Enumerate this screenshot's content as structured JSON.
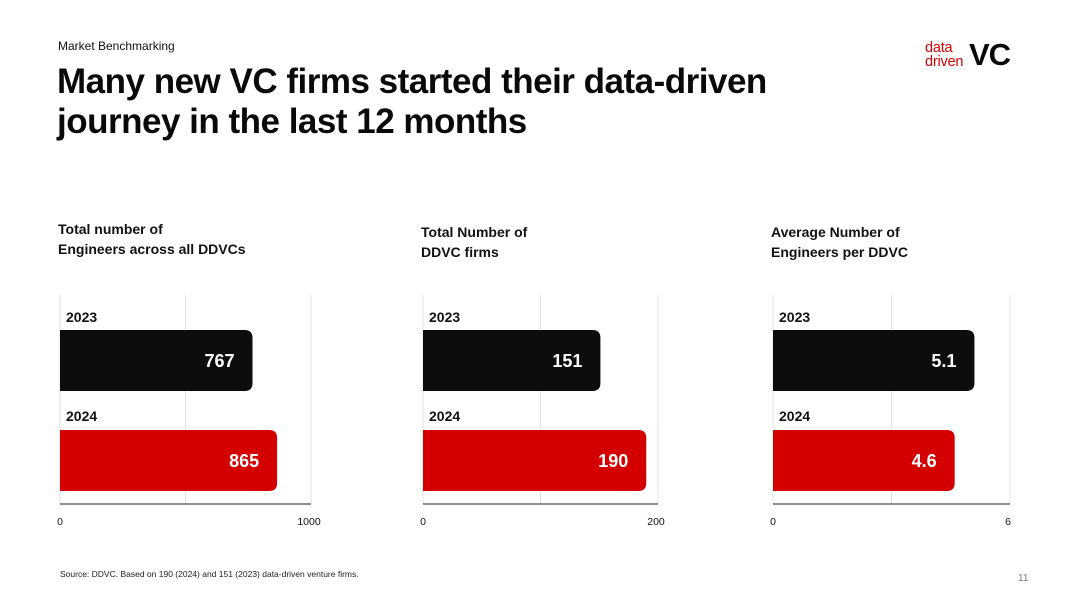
{
  "header": {
    "section": "Market Benchmarking",
    "title_line1": "Many new VC firms started their data-driven",
    "title_line2": "journey in the last 12 months"
  },
  "logo": {
    "line1": "data",
    "line2": "driven",
    "mark": "VC"
  },
  "colors": {
    "bar_2023": "#0d0d0d",
    "bar_2024": "#d40000",
    "grid": "#e2e2e2",
    "axis": "#222222"
  },
  "chart_data": [
    {
      "type": "bar",
      "orientation": "horizontal",
      "title_lines": [
        "Total number of",
        "Engineers across all DDVCs"
      ],
      "categories": [
        "2023",
        "2024"
      ],
      "values": [
        767,
        865
      ],
      "value_labels": [
        "767",
        "865"
      ],
      "xlim": [
        0,
        1000
      ],
      "tick_labels": [
        "0",
        "1000"
      ],
      "grid": true
    },
    {
      "type": "bar",
      "orientation": "horizontal",
      "title_lines": [
        "Total Number of",
        "DDVC firms"
      ],
      "categories": [
        "2023",
        "2024"
      ],
      "values": [
        151,
        190
      ],
      "value_labels": [
        "151",
        "190"
      ],
      "xlim": [
        0,
        200
      ],
      "tick_labels": [
        "0",
        "200"
      ],
      "grid": true
    },
    {
      "type": "bar",
      "orientation": "horizontal",
      "title_lines": [
        "Average Number of",
        "Engineers per DDVC"
      ],
      "categories": [
        "2023",
        "2024"
      ],
      "values": [
        5.1,
        4.6
      ],
      "value_labels": [
        "5.1",
        "4.6"
      ],
      "xlim": [
        0,
        6
      ],
      "tick_labels": [
        "0",
        "6"
      ],
      "grid": true
    }
  ],
  "footer": {
    "source": "Source: DDVC. Based on 190 (2024) and 151 (2023) data-driven venture firms.",
    "page_number": "11"
  }
}
